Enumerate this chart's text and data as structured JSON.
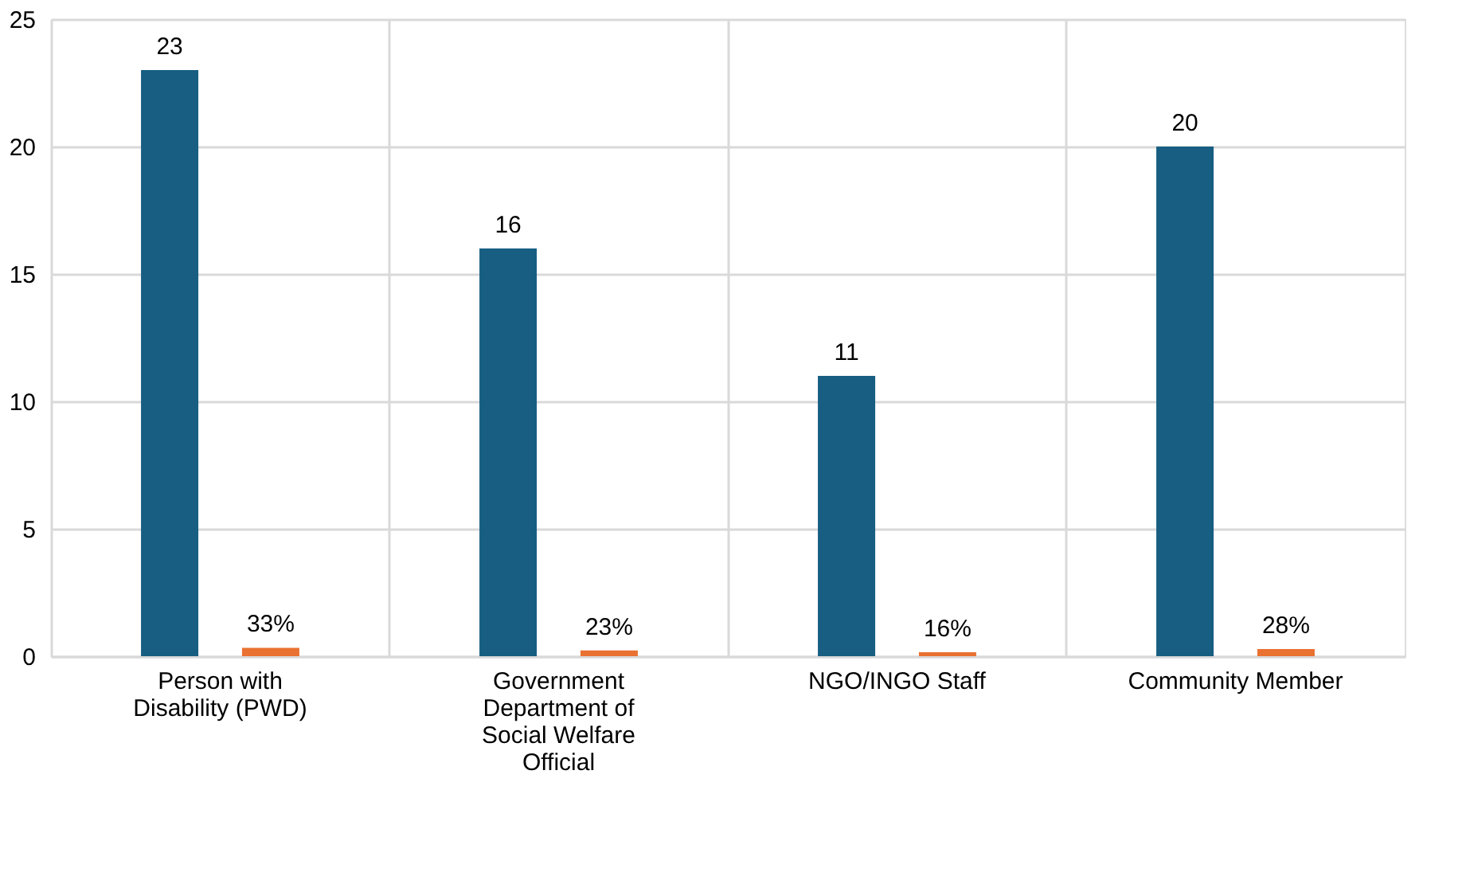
{
  "chart_data": {
    "type": "bar",
    "categories": [
      "Person with Disability (PWD)",
      "Government Department of Social Welfare Official",
      "NGO/INGO Staff",
      "Community Member"
    ],
    "series": [
      {
        "color": "#175e82",
        "values": [
          23,
          16,
          11,
          20
        ],
        "value_labels": [
          "23",
          "16",
          "11",
          "20"
        ]
      },
      {
        "color": "#e97132",
        "values": [
          0.33,
          0.23,
          0.16,
          0.28
        ],
        "value_labels": [
          "33%",
          "23%",
          "16%",
          "28%"
        ]
      }
    ],
    "ylim": [
      0,
      25
    ],
    "yticks": [
      0,
      5,
      10,
      15,
      20,
      25
    ],
    "grid": true,
    "legend": false
  }
}
